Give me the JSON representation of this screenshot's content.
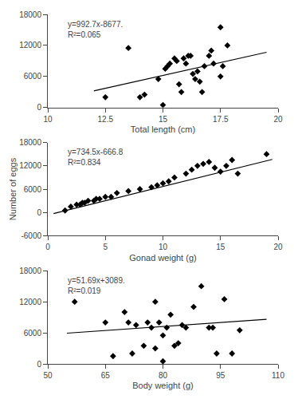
{
  "chart_data": [
    {
      "type": "scatter",
      "x_label": "Total length (cm)",
      "annotations": [
        "y=992.7x-8677.",
        "R²=0.065"
      ],
      "xlim": [
        10,
        20
      ],
      "xticks": [
        10,
        12.5,
        15,
        17.5,
        20
      ],
      "ylim": [
        0,
        18000
      ],
      "yticks": [
        0,
        6000,
        12000,
        18000
      ],
      "grid": false,
      "series": [
        {
          "type": "scatter",
          "marker": "diamond",
          "color": "black",
          "x": [
            12.5,
            13.5,
            14.0,
            14.2,
            14.8,
            15.0,
            15.1,
            15.2,
            15.3,
            15.5,
            15.6,
            15.7,
            15.8,
            15.9,
            16.0,
            16.1,
            16.2,
            16.3,
            16.4,
            16.5,
            16.6,
            16.7,
            16.8,
            17.0,
            17.1,
            17.2,
            17.5,
            17.6,
            17.5,
            17.8
          ],
          "values": [
            2000,
            11500,
            2000,
            2500,
            5500,
            500,
            7500,
            8000,
            8500,
            9500,
            9000,
            4500,
            3000,
            9500,
            8500,
            10000,
            10000,
            6500,
            5500,
            7000,
            5000,
            3000,
            8000,
            10000,
            11000,
            8500,
            15500,
            8000,
            6000,
            12000
          ]
        },
        {
          "type": "line",
          "color": "black",
          "x": [
            12.0,
            19.5
          ],
          "values": [
            3235.4,
            10680.65
          ]
        }
      ]
    },
    {
      "type": "scatter",
      "x_label": "Gonad weight (g)",
      "y_label": "Number of eggs",
      "annotations": [
        "y=734.5x-666.8",
        "R²=0.834"
      ],
      "xlim": [
        0,
        20
      ],
      "xticks": [
        0,
        5,
        10,
        15,
        20
      ],
      "ylim": [
        -6000,
        18000
      ],
      "yticks": [
        -6000,
        0,
        6000,
        12000,
        18000
      ],
      "grid": false,
      "series": [
        {
          "type": "scatter",
          "marker": "diamond",
          "color": "black",
          "x": [
            1.5,
            2.0,
            2.5,
            2.8,
            3.0,
            3.2,
            3.5,
            4.0,
            4.2,
            4.5,
            5.0,
            5.5,
            6.0,
            7.0,
            8.0,
            9.0,
            9.5,
            10.0,
            10.5,
            11.0,
            12.0,
            12.5,
            13.0,
            13.5,
            14.0,
            14.5,
            15.0,
            15.5,
            16.0,
            16.5,
            19.0
          ],
          "values": [
            500,
            1500,
            2000,
            2000,
            2500,
            2500,
            3000,
            3000,
            3500,
            3500,
            4000,
            4000,
            5000,
            5500,
            6000,
            6500,
            7000,
            7500,
            8000,
            9000,
            10000,
            11000,
            12000,
            12500,
            13000,
            11500,
            10500,
            12000,
            13500,
            10000,
            15000
          ]
        },
        {
          "type": "line",
          "color": "black",
          "x": [
            0.5,
            19.5
          ],
          "values": [
            -299.55,
            13655.95
          ]
        }
      ]
    },
    {
      "type": "scatter",
      "x_label": "Body weight (g)",
      "annotations": [
        "y=51.69x+3089.",
        "R²=0.019"
      ],
      "xlim": [
        50,
        110
      ],
      "xticks": [
        50,
        65,
        80,
        95,
        110
      ],
      "ylim": [
        0,
        18000
      ],
      "yticks": [
        0,
        6000,
        12000,
        18000
      ],
      "grid": false,
      "series": [
        {
          "type": "scatter",
          "marker": "diamond",
          "color": "black",
          "x": [
            57,
            65,
            67,
            70,
            71,
            72,
            73,
            75,
            76,
            77,
            78,
            78,
            79,
            80,
            80,
            81,
            82,
            83,
            84,
            85,
            86,
            88,
            90,
            92,
            93,
            94,
            96,
            98,
            100
          ],
          "values": [
            12000,
            8000,
            1500,
            10000,
            8000,
            2000,
            7500,
            3500,
            8000,
            7000,
            3000,
            12000,
            8000,
            500,
            5500,
            7000,
            9500,
            3500,
            4000,
            7500,
            7000,
            11000,
            15000,
            7000,
            7000,
            2000,
            12500,
            2000,
            6500
          ]
        },
        {
          "type": "line",
          "color": "black",
          "x": [
            55,
            107
          ],
          "values": [
            5931.95,
            8619.83
          ]
        }
      ]
    }
  ]
}
